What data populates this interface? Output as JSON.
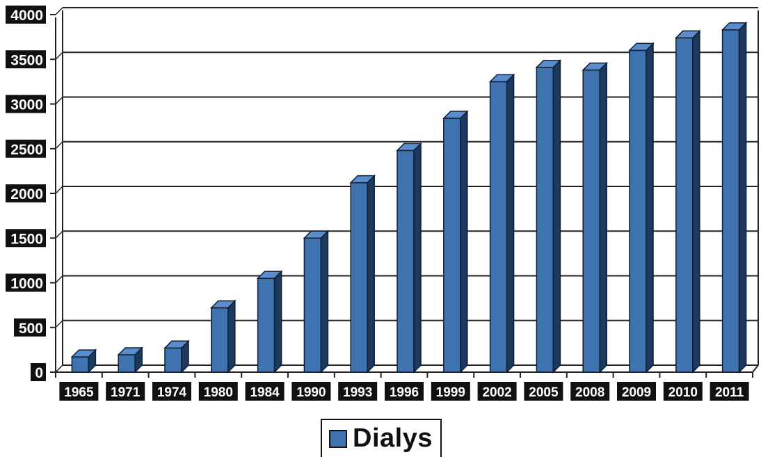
{
  "chart_data": {
    "type": "bar",
    "title": "",
    "xlabel": "",
    "ylabel": "",
    "categories": [
      "1965",
      "1971",
      "1974",
      "1980",
      "1984",
      "1990",
      "1993",
      "1996",
      "1999",
      "2002",
      "2005",
      "2008",
      "2009",
      "2010",
      "2011"
    ],
    "series": [
      {
        "name": "Dialys",
        "values": [
          170,
          195,
          270,
          720,
          1050,
          1500,
          2120,
          2480,
          2840,
          3250,
          3410,
          3380,
          3600,
          3740,
          3830
        ],
        "color": "#3e73b0"
      }
    ],
    "ylim": [
      0,
      4000
    ],
    "yticks": [
      "0",
      "500",
      "1000",
      "1500",
      "2000",
      "2500",
      "3000",
      "3500",
      "4000"
    ],
    "grid": true,
    "legend_position": "bottom-center",
    "style": "3d-columns"
  }
}
